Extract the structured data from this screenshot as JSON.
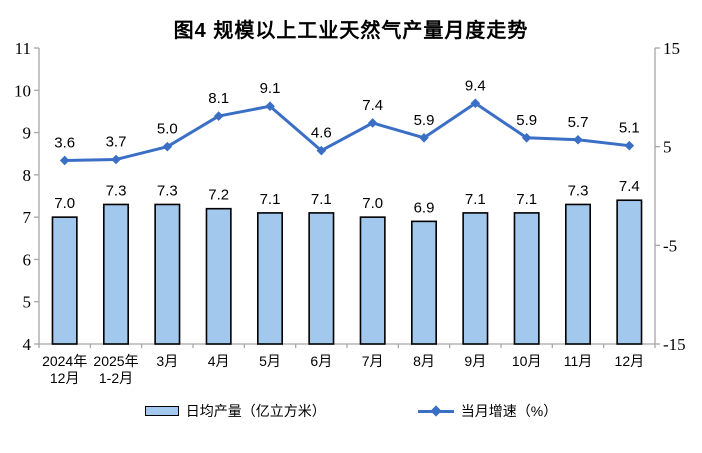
{
  "title": "图4 规模以上工业天然气产量月度走势",
  "colors": {
    "bar_fill": "#A2C8EE",
    "bar_stroke": "#000000",
    "line": "#3A6FC5",
    "axis": "#A6A6A6",
    "text": "#000000"
  },
  "legend": [
    {
      "label": "日均产量（亿立方米）",
      "type": "bar"
    },
    {
      "label": "当月增速（%）",
      "type": "line"
    }
  ],
  "chart_data": {
    "type": "bar+line combo",
    "title": "图4 规模以上工业天然气产量月度走势",
    "categories": [
      [
        "2024年",
        "12月"
      ],
      [
        "2025年",
        "1-2月"
      ],
      [
        "3月"
      ],
      [
        "4月"
      ],
      [
        "5月"
      ],
      [
        "6月"
      ],
      [
        "7月"
      ],
      [
        "8月"
      ],
      [
        "9月"
      ],
      [
        "10月"
      ],
      [
        "11月"
      ],
      [
        "12月"
      ]
    ],
    "series": [
      {
        "name": "日均产量（亿立方米）",
        "type": "bar",
        "axis": "left",
        "values": [
          7.0,
          7.3,
          7.3,
          7.2,
          7.1,
          7.1,
          7.0,
          6.9,
          7.1,
          7.1,
          7.3,
          7.4
        ]
      },
      {
        "name": "当月增速（%）",
        "type": "line",
        "axis": "right",
        "values": [
          3.6,
          3.7,
          5.0,
          8.1,
          9.1,
          4.6,
          7.4,
          5.9,
          9.4,
          5.9,
          5.7,
          5.1
        ]
      }
    ],
    "left_axis": {
      "min": 4,
      "max": 11,
      "ticks": [
        4,
        5,
        6,
        7,
        8,
        9,
        10,
        11
      ]
    },
    "right_axis": {
      "min": -15,
      "max": 15,
      "ticks": [
        15,
        5,
        -5,
        -15
      ]
    },
    "grid": false,
    "legend_position": "bottom"
  }
}
